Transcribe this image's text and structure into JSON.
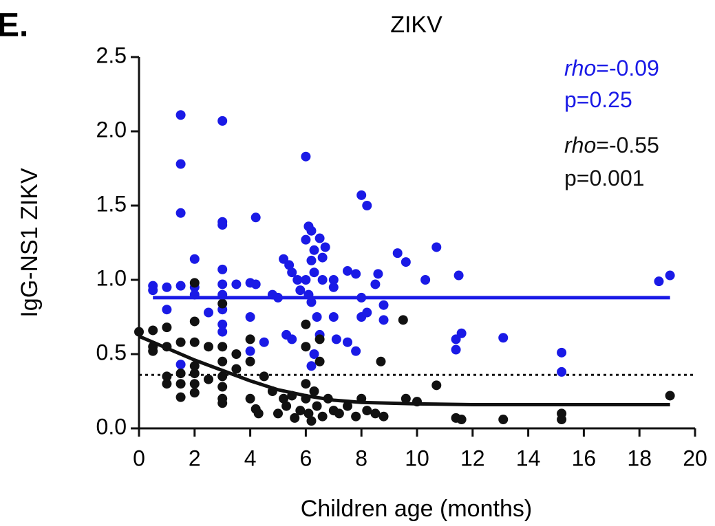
{
  "chart_data": {
    "type": "scatter",
    "panel_label": "E.",
    "title": "ZIKV",
    "xlabel": "Children age (months)",
    "ylabel": "IgG-NS1 ZIKV",
    "xlim": [
      0,
      20
    ],
    "ylim": [
      0,
      2.5
    ],
    "xticks": [
      0,
      2,
      4,
      6,
      8,
      10,
      12,
      14,
      16,
      18,
      20
    ],
    "yticks": [
      {
        "value": 0,
        "label": "0.0"
      },
      0.5,
      {
        "value": 1,
        "label": "1.0"
      },
      1.5,
      {
        "value": 2,
        "label": "2.0"
      },
      2.5
    ],
    "threshold": 0.36,
    "annotations": [
      {
        "italic": "rho",
        "text": "=-0.09",
        "color": "#1a1ae6"
      },
      {
        "text": "p=0.25",
        "color": "#1a1ae6"
      },
      {
        "italic": "rho",
        "text": "=-0.55",
        "color": "#111111"
      },
      {
        "text": "p=0.001",
        "color": "#111111"
      }
    ],
    "series": [
      {
        "color": "#1a1ae6",
        "x": [
          1.5,
          1.5,
          1.5,
          3,
          3,
          3,
          3,
          3,
          3,
          3,
          3,
          3,
          2,
          2,
          2,
          0.5,
          0.5,
          1,
          1,
          1.5,
          1.5,
          2.5,
          3.5,
          4,
          4.2,
          4.2,
          4,
          4,
          4.5,
          4.8,
          5,
          5.2,
          5.4,
          5.5,
          5.3,
          5.5,
          5.7,
          5.8,
          6,
          6,
          6.1,
          6.2,
          6.3,
          6.2,
          6.3,
          6,
          6.1,
          6.2,
          6.5,
          6.6,
          6.7,
          6.6,
          6.4,
          6.5,
          6.3,
          6.2,
          7,
          7,
          7,
          7.1,
          7.5,
          7.5,
          7.8,
          7.8,
          8,
          8.2,
          8,
          8,
          8.2,
          8.5,
          8.6,
          8.8,
          8.8,
          9.3,
          9.6,
          10.3,
          10.7,
          11.5,
          11.4,
          11.4,
          11.6,
          13.1,
          15.2,
          15.2,
          18.7,
          19.1
        ],
        "values": [
          2.11,
          1.78,
          1.45,
          2.07,
          1.39,
          1.37,
          1.07,
          0.97,
          0.9,
          0.8,
          0.7,
          0.65,
          1.14,
          0.95,
          0.9,
          0.96,
          0.93,
          0.95,
          0.8,
          0.96,
          0.43,
          0.78,
          0.97,
          0.98,
          1.42,
          0.97,
          0.75,
          0.52,
          0.58,
          0.9,
          0.88,
          1.14,
          1.1,
          1.05,
          0.63,
          0.6,
          1.0,
          0.93,
          1.83,
          1.27,
          1.36,
          1.33,
          1.2,
          1.13,
          1.05,
          1.0,
          0.9,
          0.85,
          1.28,
          1.15,
          1.22,
          1.0,
          0.75,
          0.63,
          0.5,
          0.42,
          1.0,
          0.95,
          0.75,
          0.6,
          1.06,
          0.58,
          1.04,
          0.52,
          1.57,
          1.5,
          0.88,
          0.75,
          0.78,
          0.97,
          1.04,
          0.83,
          0.73,
          1.18,
          1.12,
          1.0,
          1.22,
          1.03,
          0.6,
          0.53,
          0.64,
          0.61,
          0.51,
          0.38,
          0.99,
          1.03
        ],
        "fit": {
          "x": [
            0.5,
            19.1
          ],
          "values": [
            0.88,
            0.88
          ]
        }
      },
      {
        "color": "#111111",
        "x": [
          0,
          0.5,
          0.5,
          0.5,
          1,
          1,
          1,
          1,
          1.5,
          1.5,
          1.5,
          1.5,
          2,
          2,
          2,
          2,
          2,
          2,
          2,
          2.5,
          2.5,
          3,
          3,
          3,
          3,
          3,
          3,
          3,
          3.5,
          3.5,
          4,
          4,
          4,
          4.2,
          4.3,
          4.5,
          4.8,
          5,
          5.2,
          5.3,
          5.5,
          5.6,
          5.8,
          6,
          6,
          6,
          6,
          6.1,
          6.2,
          6.3,
          6.4,
          6.5,
          6.5,
          6.6,
          6.8,
          7,
          7.2,
          7.5,
          7.8,
          8,
          8.2,
          8.5,
          8.7,
          8.8,
          9.5,
          9.6,
          10,
          10.7,
          11.4,
          11.6,
          13.1,
          15.2,
          15.2,
          19.1
        ],
        "values": [
          0.65,
          0.66,
          0.55,
          0.52,
          0.55,
          0.68,
          0.3,
          0.35,
          0.58,
          0.37,
          0.3,
          0.21,
          0.98,
          0.72,
          0.58,
          0.42,
          0.37,
          0.3,
          0.24,
          0.55,
          0.33,
          0.84,
          0.55,
          0.45,
          0.35,
          0.28,
          0.2,
          0.17,
          0.5,
          0.4,
          0.6,
          0.45,
          0.2,
          0.13,
          0.1,
          0.35,
          0.25,
          0.1,
          0.2,
          0.15,
          0.22,
          0.07,
          0.12,
          0.7,
          0.55,
          0.3,
          0.2,
          0.1,
          0.05,
          0.25,
          0.15,
          0.6,
          0.45,
          0.08,
          0.2,
          0.12,
          0.1,
          0.15,
          0.08,
          0.2,
          0.12,
          0.1,
          0.45,
          0.08,
          0.73,
          0.2,
          0.18,
          0.29,
          0.07,
          0.06,
          0.06,
          0.1,
          0.06,
          0.22
        ],
        "fit": {
          "x": [
            0,
            1,
            2,
            3,
            4,
            5,
            6,
            7,
            8,
            10,
            12,
            16,
            19.1
          ],
          "values": [
            0.62,
            0.54,
            0.46,
            0.39,
            0.32,
            0.26,
            0.22,
            0.19,
            0.175,
            0.165,
            0.16,
            0.16,
            0.16
          ]
        }
      }
    ]
  }
}
